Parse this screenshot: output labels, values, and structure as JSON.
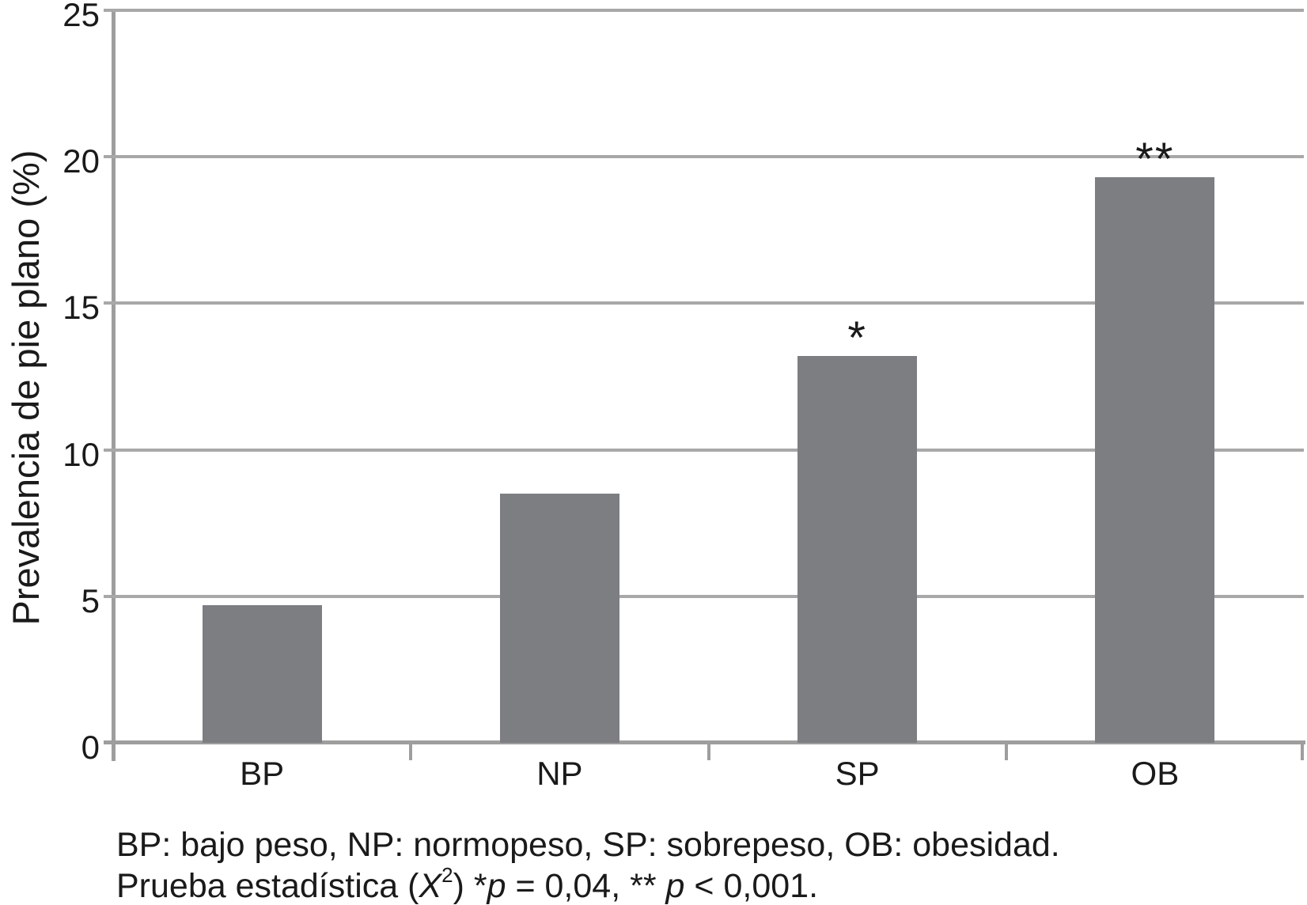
{
  "chart_data": {
    "type": "bar",
    "categories": [
      "BP",
      "NP",
      "SP",
      "OB"
    ],
    "values": [
      4.7,
      8.5,
      13.2,
      19.3
    ],
    "significance": [
      "",
      "",
      "*",
      "**"
    ],
    "title": "",
    "xlabel": "",
    "ylabel": "Prevalencia de pie plano (%)",
    "ylim": [
      0,
      25
    ],
    "yticks": [
      0,
      5,
      10,
      15,
      20,
      25
    ],
    "grid": "horizontal",
    "legend": "none",
    "bar_color": "#7c7e81",
    "gridline_color": "#a8a8a8",
    "axis_color": "#9e9e9e",
    "text_color": "#1a1a1a"
  },
  "caption": {
    "line1": "BP: bajo peso, NP: normopeso, SP: sobrepeso, OB: obesidad.",
    "line2": {
      "t1": "Prueba estadística (",
      "chi": "X",
      "sup": "2",
      "t2": ") *",
      "p1": "p",
      "t3": " = 0,04, ** ",
      "p2": "p",
      "t4": " < 0,001."
    }
  }
}
